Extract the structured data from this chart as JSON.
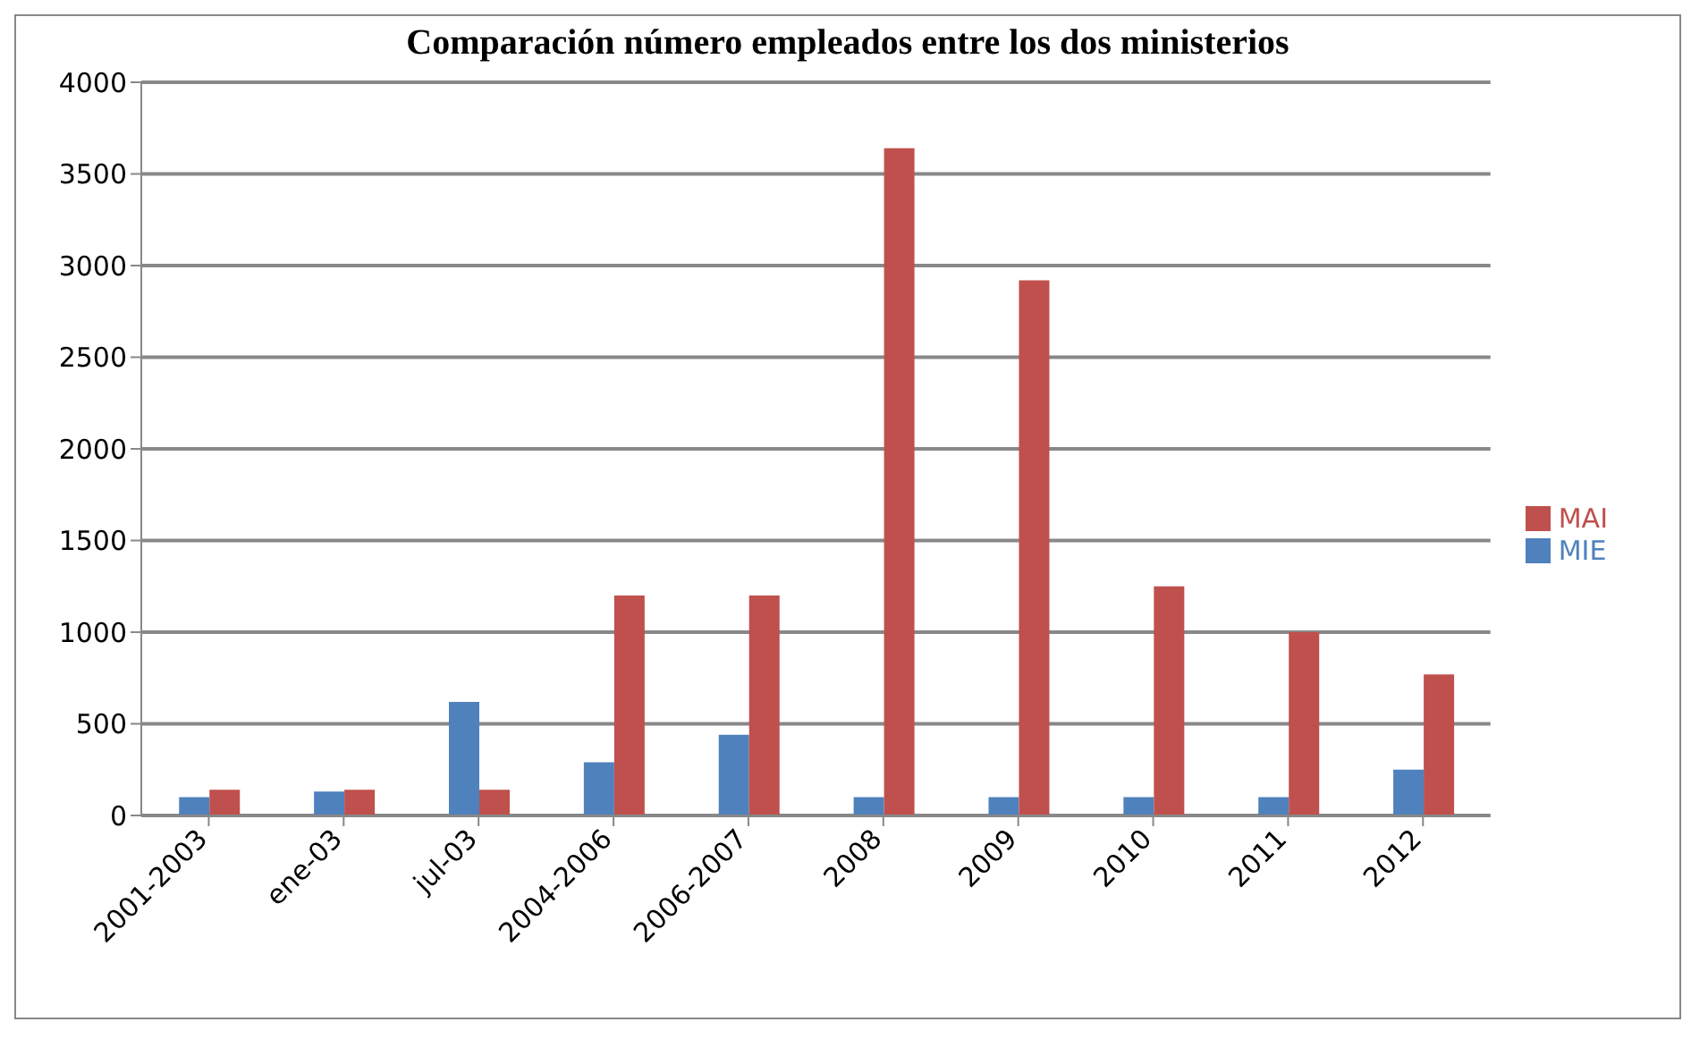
{
  "chart_data": {
    "type": "bar",
    "title": "Comparación número empleados entre los dos ministerios",
    "categories": [
      "2001-2003",
      "ene-03",
      "jul-03",
      "2004-2006",
      "2006-2007",
      "2008",
      "2009",
      "2010",
      "2011",
      "2012"
    ],
    "series": [
      {
        "name": "MIE",
        "color": "#4f81bd",
        "values": [
          100,
          130,
          620,
          290,
          440,
          100,
          100,
          100,
          100,
          250
        ]
      },
      {
        "name": "MAI",
        "color": "#c0504d",
        "values": [
          140,
          140,
          140,
          1200,
          1200,
          3640,
          2920,
          1250,
          1000,
          770
        ]
      }
    ],
    "ylim": [
      0,
      4000
    ],
    "yticks": [
      0,
      500,
      1000,
      1500,
      2000,
      2500,
      3000,
      3500,
      4000
    ],
    "grid": "y",
    "legend": "right"
  }
}
